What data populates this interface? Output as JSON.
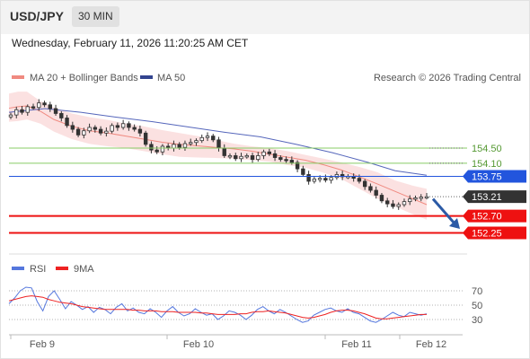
{
  "header": {
    "symbol": "USD/JPY",
    "timeframe": "30 MIN"
  },
  "timestamp": "Wednesday, February 11, 2026 11:20:25 AM CET",
  "legend": {
    "ma20": "MA 20 + Bollinger Bands",
    "ma50": "MA 50",
    "credit": "Research © 2026 Trading Central"
  },
  "rsi_legend": {
    "rsi": "RSI",
    "ma9": "9MA"
  },
  "colors": {
    "bollinger": "#f7c9c9",
    "ma20": "#f08a80",
    "ma50": "#5566bb",
    "support": "#ee1111",
    "resistance": "#88cc66",
    "last": "#333333",
    "pivot": "#2255dd",
    "rsi": "#5577dd",
    "rsi_ma": "#ee2222"
  },
  "chart_data": [
    {
      "type": "candlestick",
      "title": "USD/JPY",
      "x_ticks": [
        "Feb 9",
        "Feb 10",
        "Feb 11",
        "Feb 12"
      ],
      "ylim": [
        151.88,
        156.05
      ],
      "series": [
        {
          "name": "MA 20 + Bollinger Bands",
          "kind": "band+line",
          "x": [
            0,
            10,
            20,
            35,
            50,
            70,
            90,
            110,
            130,
            150,
            170,
            190,
            210,
            230,
            250,
            270,
            290,
            310,
            330,
            350,
            370,
            390,
            410,
            430,
            450,
            465
          ],
          "upper": [
            155.95,
            156.0,
            156.0,
            155.75,
            155.58,
            155.42,
            155.32,
            155.25,
            155.15,
            155.08,
            154.98,
            154.9,
            154.82,
            154.72,
            154.62,
            154.55,
            154.5,
            154.42,
            154.32,
            154.22,
            154.12,
            154.0,
            153.86,
            153.64,
            153.5,
            153.42
          ],
          "mid": [
            155.56,
            155.6,
            155.62,
            155.48,
            155.26,
            155.08,
            154.96,
            154.9,
            154.82,
            154.74,
            154.66,
            154.6,
            154.56,
            154.52,
            154.48,
            154.42,
            154.34,
            154.26,
            154.18,
            154.06,
            153.92,
            153.74,
            153.55,
            153.35,
            153.15,
            153.0
          ],
          "lower": [
            155.2,
            155.22,
            155.26,
            155.15,
            154.94,
            154.74,
            154.61,
            154.55,
            154.5,
            154.42,
            154.34,
            154.27,
            154.25,
            154.24,
            154.22,
            154.18,
            154.14,
            154.05,
            153.98,
            153.85,
            153.68,
            153.42,
            153.16,
            152.95,
            152.74,
            152.6
          ]
        },
        {
          "name": "MA 50",
          "kind": "line",
          "x": [
            0,
            40,
            80,
            120,
            160,
            200,
            240,
            280,
            320,
            360,
            400,
            430,
            465
          ],
          "values": [
            155.45,
            155.55,
            155.45,
            155.32,
            155.2,
            155.06,
            154.92,
            154.8,
            154.6,
            154.38,
            154.12,
            153.9,
            153.78
          ]
        },
        {
          "name": "USD/JPY",
          "kind": "candles",
          "close_path": [
            155.38,
            155.52,
            155.45,
            155.6,
            155.58,
            155.7,
            155.65,
            155.55,
            155.42,
            155.3,
            155.1,
            155.0,
            154.85,
            154.96,
            155.05,
            155.0,
            154.9,
            154.95,
            155.1,
            155.05,
            155.15,
            155.05,
            155.0,
            154.9,
            154.6,
            154.45,
            154.4,
            154.55,
            154.5,
            154.6,
            154.52,
            154.62,
            154.65,
            154.7,
            154.78,
            154.82,
            154.72,
            154.5,
            154.3,
            154.3,
            154.22,
            154.28,
            154.3,
            154.2,
            154.3,
            154.4,
            154.35,
            154.25,
            154.2,
            154.18,
            154.12,
            153.95,
            153.8,
            153.62,
            153.68,
            153.7,
            153.65,
            153.72,
            153.8,
            153.74,
            153.75,
            153.7,
            153.62,
            153.48,
            153.38,
            153.25,
            153.1,
            153.02,
            152.95,
            153.0,
            153.08,
            153.15,
            153.18,
            153.2,
            153.21
          ]
        }
      ],
      "levels": [
        {
          "label": "154.50",
          "value": 154.5,
          "kind": "resistance"
        },
        {
          "label": "154.10",
          "value": 154.1,
          "kind": "resistance"
        },
        {
          "label": "153.75",
          "value": 153.75,
          "kind": "pivot"
        },
        {
          "label": "153.21",
          "value": 153.21,
          "kind": "last"
        },
        {
          "label": "152.70",
          "value": 152.7,
          "kind": "support"
        },
        {
          "label": "152.25",
          "value": 152.25,
          "kind": "support"
        }
      ],
      "annotations": [
        {
          "type": "arrow",
          "direction": "down",
          "from_value": 153.2,
          "to_value": 152.5
        }
      ]
    },
    {
      "type": "line",
      "title": "RSI",
      "ylim": [
        10,
        90
      ],
      "y_ticks": [
        70,
        50,
        30
      ],
      "series": [
        {
          "name": "RSI",
          "values": [
            52,
            60,
            70,
            75,
            74,
            55,
            42,
            62,
            70,
            58,
            45,
            55,
            50,
            44,
            48,
            40,
            47,
            44,
            38,
            47,
            52,
            42,
            46,
            40,
            38,
            45,
            40,
            33,
            42,
            48,
            40,
            35,
            38,
            45,
            40,
            36,
            38,
            30,
            35,
            42,
            40,
            36,
            30,
            36,
            44,
            48,
            42,
            38,
            44,
            40,
            35,
            30,
            26,
            28,
            36,
            40,
            44,
            46,
            42,
            40,
            45,
            40,
            38,
            33,
            28,
            26,
            30,
            35,
            40,
            36,
            34,
            40,
            38,
            36,
            38
          ]
        },
        {
          "name": "9MA",
          "values": [
            56,
            58,
            60,
            62,
            63,
            62,
            61,
            58,
            56,
            54,
            53,
            52,
            50,
            48,
            47,
            46,
            45,
            44,
            44,
            44,
            44,
            44,
            43,
            43,
            42,
            42,
            42,
            41,
            41,
            41,
            40,
            40,
            40,
            40,
            39,
            39,
            38,
            37,
            37,
            37,
            37,
            38,
            38,
            40,
            41,
            41,
            42,
            41,
            40,
            39,
            37,
            35,
            33,
            32,
            33,
            35,
            37,
            40,
            42,
            43,
            43,
            42,
            40,
            38,
            35,
            32,
            31,
            31,
            32,
            33,
            34,
            35,
            36,
            37,
            37
          ]
        }
      ]
    }
  ]
}
